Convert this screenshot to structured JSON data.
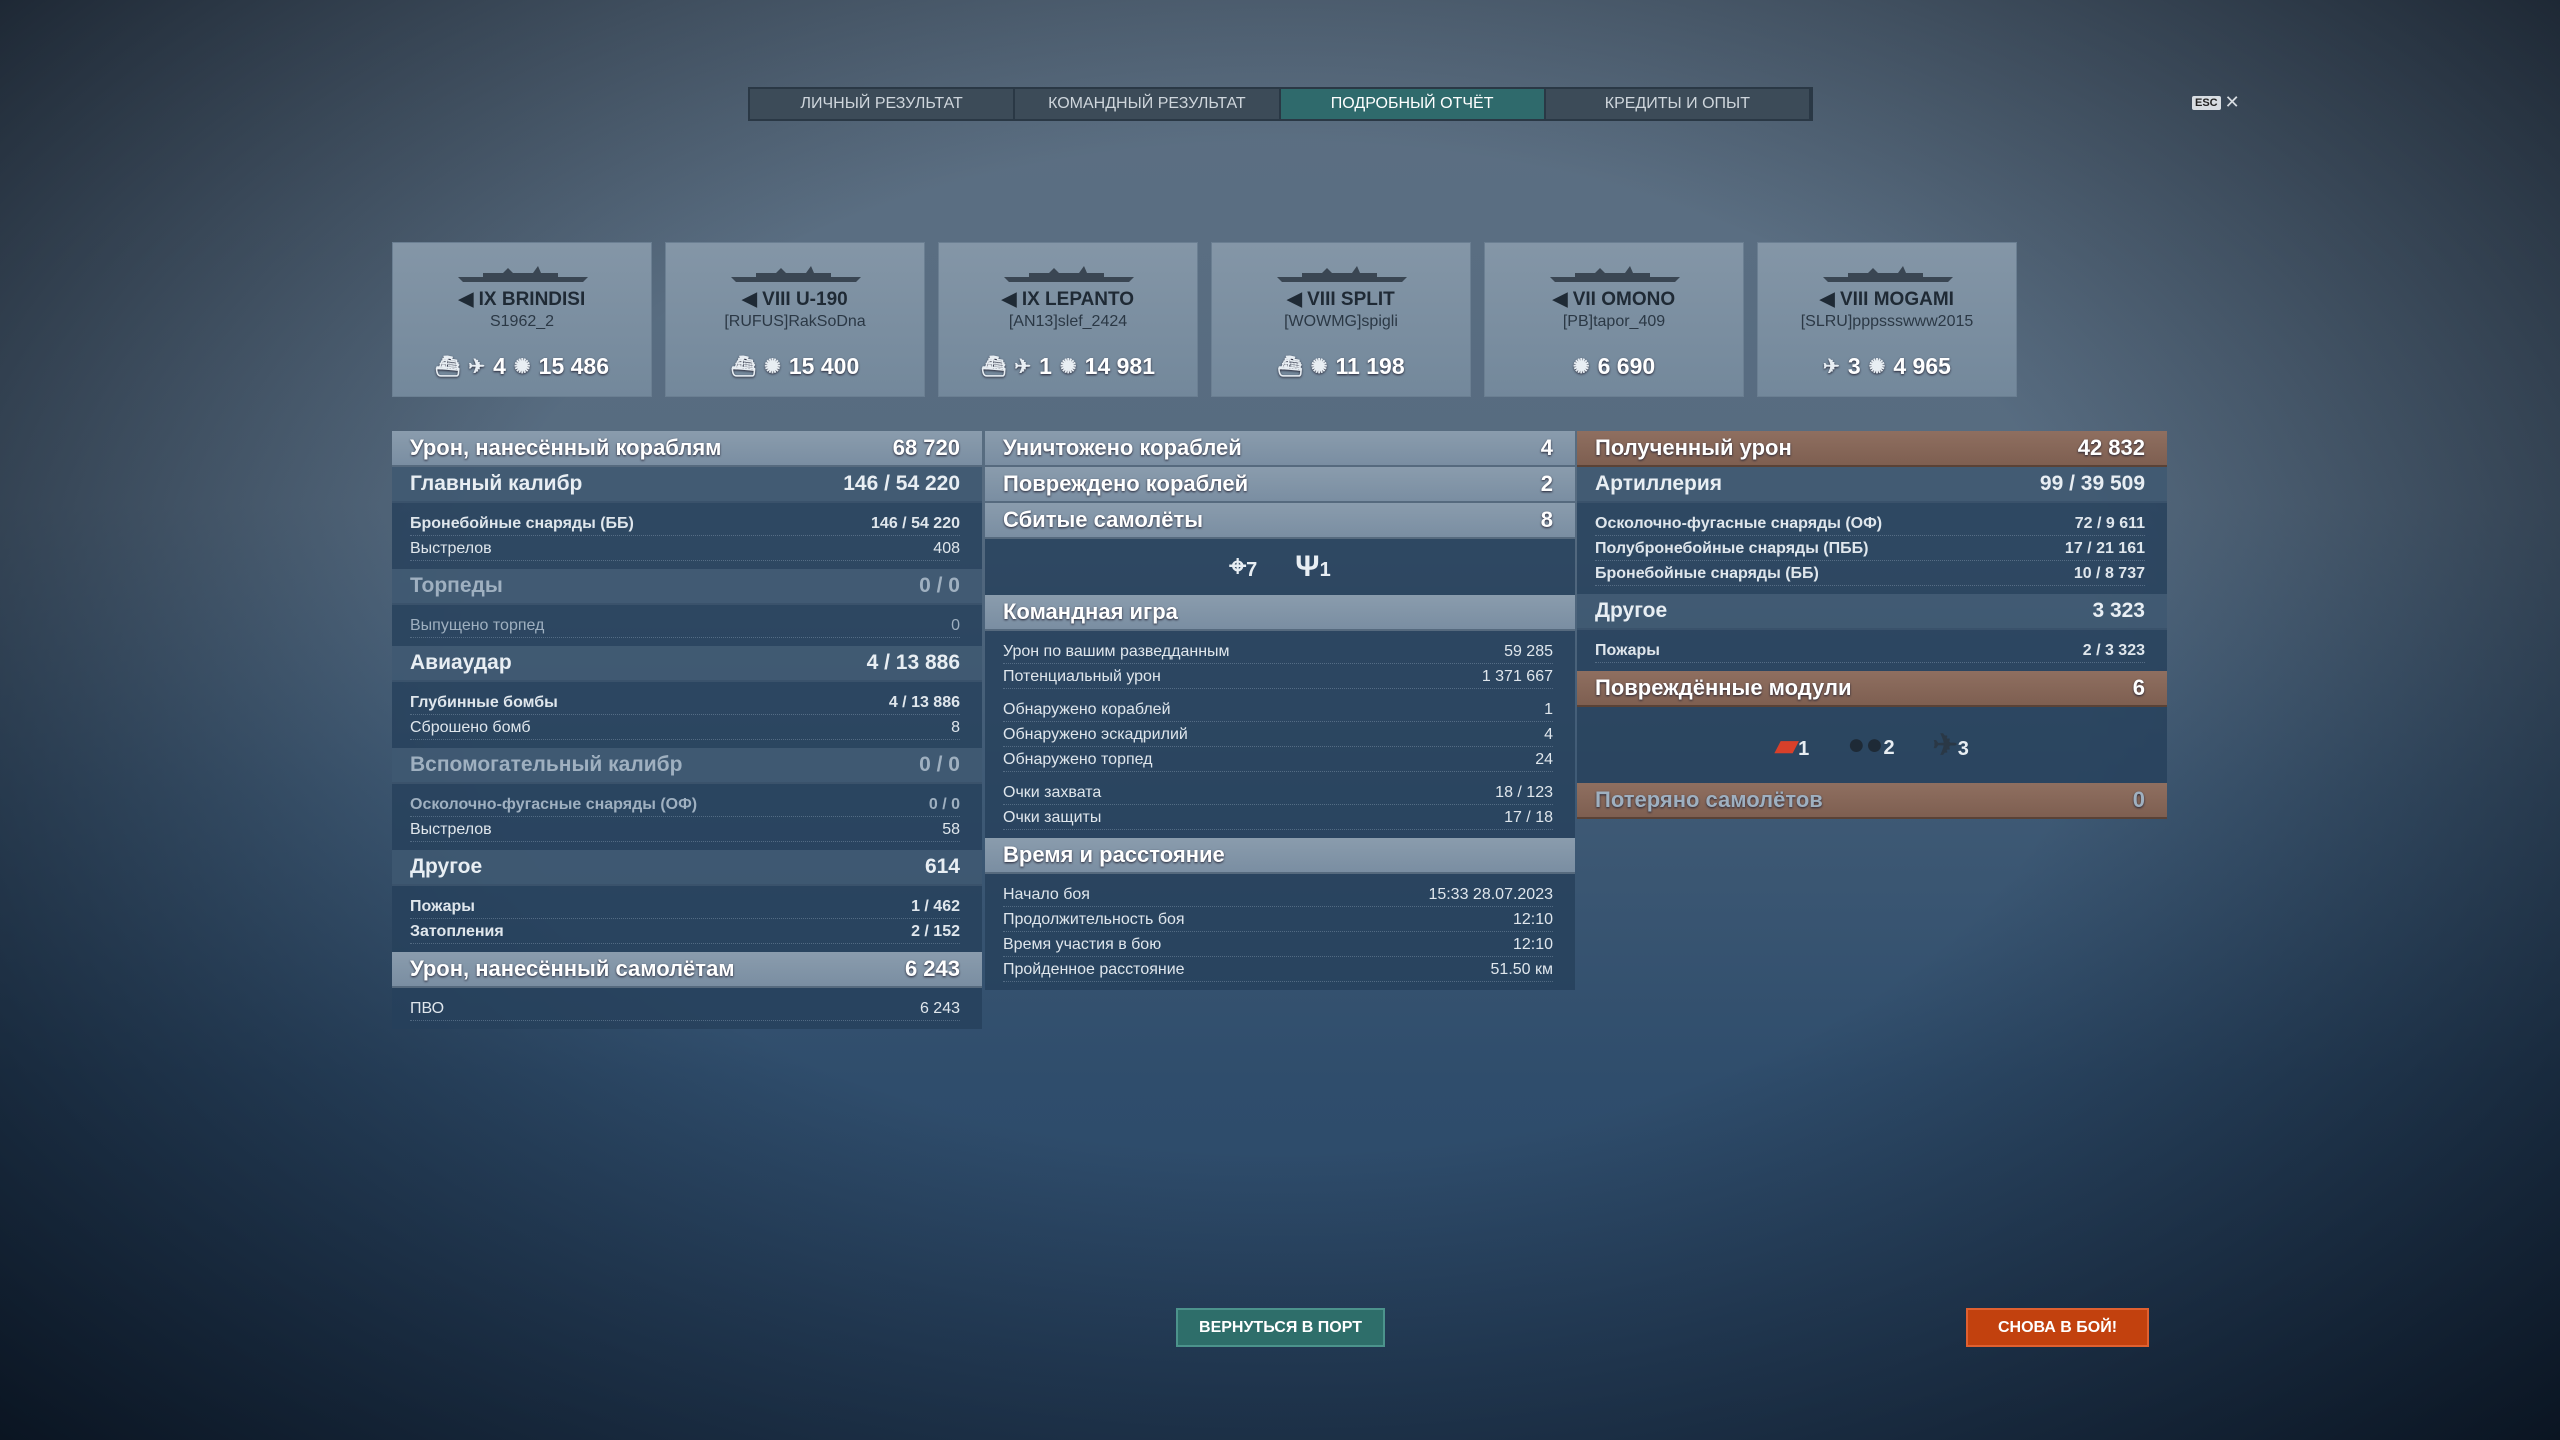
{
  "tabs": [
    {
      "label": "ЛИЧНЫЙ РЕЗУЛЬТАТ",
      "active": false
    },
    {
      "label": "КОМАНДНЫЙ РЕЗУЛЬТАТ",
      "active": false
    },
    {
      "label": "ПОДРОБНЫЙ ОТЧЁТ",
      "active": true
    },
    {
      "label": "КРЕДИТЫ И ОПЫТ",
      "active": false
    }
  ],
  "esc": {
    "key": "ESC",
    "close": "✕"
  },
  "ships": [
    {
      "name": "IX BRINDISI",
      "player": "S1962_2",
      "class_icon": "destroyer-icon",
      "stats": [
        {
          "icon": "ship-sunk-icon",
          "value": ""
        },
        {
          "icon": "plane-shot-icon",
          "value": "4"
        },
        {
          "icon": "damage-icon",
          "value": "15 486"
        }
      ]
    },
    {
      "name": "VIII U-190",
      "player": "[RUFUS]RakSoDna",
      "class_icon": "submarine-icon",
      "stats": [
        {
          "icon": "ship-sunk-icon",
          "value": ""
        },
        {
          "icon": "damage-icon",
          "value": "15 400"
        }
      ]
    },
    {
      "name": "IX LEPANTO",
      "player": "[AN13]slef_2424",
      "class_icon": "destroyer-icon",
      "stats": [
        {
          "icon": "ship-sunk-icon",
          "value": ""
        },
        {
          "icon": "plane-shot-icon",
          "value": "1"
        },
        {
          "icon": "damage-icon",
          "value": "14 981"
        }
      ]
    },
    {
      "name": "VIII SPLIT",
      "player": "[WOWMG]spigli",
      "class_icon": "submarine-icon",
      "stats": [
        {
          "icon": "ship-sunk-icon",
          "value": ""
        },
        {
          "icon": "damage-icon",
          "value": "11 198"
        }
      ]
    },
    {
      "name": "VII OMONO",
      "player": "[PB]tapor_409",
      "class_icon": "destroyer-icon",
      "stats": [
        {
          "icon": "damage-icon",
          "value": "6 690"
        }
      ]
    },
    {
      "name": "VIII MOGAMI",
      "player": "[SLRU]pppssswww2015",
      "class_icon": "cruiser-icon",
      "stats": [
        {
          "icon": "plane-shot-icon",
          "value": "3"
        },
        {
          "icon": "damage-icon",
          "value": "4 965"
        }
      ]
    }
  ],
  "columns": [
    [
      {
        "t": "major",
        "label": "Урон, нанесённый кораблям",
        "b": "68 720"
      },
      {
        "t": "minor",
        "label": "Главный калибр",
        "a": "146 / ",
        "b": "54 220"
      },
      {
        "t": "rows",
        "rows": [
          {
            "label": "Бронебойные снаряды (ББ)",
            "a": "146 / ",
            "b": "54 220",
            "bold": true
          },
          {
            "label": "Выстрелов",
            "a": "408"
          }
        ]
      },
      {
        "t": "minor",
        "label": "Торпеды",
        "a": "0 / 0",
        "dim": true
      },
      {
        "t": "rows",
        "rows": [
          {
            "label": "Выпущено торпед",
            "a": "0",
            "dim": true
          }
        ]
      },
      {
        "t": "minor",
        "label": "Авиаудар",
        "a": "4 / ",
        "b": "13 886"
      },
      {
        "t": "rows",
        "rows": [
          {
            "label": "Глубинные бомбы",
            "a": "4 / ",
            "b": "13 886",
            "bold": true
          },
          {
            "label": "Сброшено бомб",
            "a": "8"
          }
        ]
      },
      {
        "t": "minor",
        "label": "Вспомогательный калибр",
        "a": "0 / 0",
        "dim": true
      },
      {
        "t": "rows",
        "rows": [
          {
            "label": "Осколочно-фугасные снаряды (ОФ)",
            "a": "0 / 0",
            "dim": true,
            "bold": true
          },
          {
            "label": "Выстрелов",
            "a": "58"
          }
        ]
      },
      {
        "t": "minor",
        "label": "Другое",
        "b": "614"
      },
      {
        "t": "rows",
        "rows": [
          {
            "label": "Пожары",
            "a": "1 / ",
            "b": "462",
            "bold": true
          },
          {
            "label": "Затопления",
            "a": "2 / ",
            "b": "152",
            "bold": true
          }
        ]
      },
      {
        "t": "major",
        "label": "Урон, нанесённый самолётам",
        "b": "6 243"
      },
      {
        "t": "rows",
        "rows": [
          {
            "label": "ПВО",
            "a": "6 243"
          }
        ]
      }
    ],
    [
      {
        "t": "major",
        "label": "Уничтожено кораблей",
        "b": "4"
      },
      {
        "t": "major",
        "label": "Повреждено кораблей",
        "b": "2"
      },
      {
        "t": "major",
        "label": "Сбитые самолёты",
        "b": "8"
      },
      {
        "t": "icons",
        "items": [
          {
            "icon": "aa-crosshair-icon",
            "glyph": "⌖",
            "value": "7"
          },
          {
            "icon": "fighter-icon",
            "glyph": "Ψ",
            "value": "1"
          }
        ]
      },
      {
        "t": "major",
        "label": "Командная игра"
      },
      {
        "t": "rows",
        "rows": [
          {
            "label": "Урон по вашим разведданным",
            "a": "59 285"
          },
          {
            "label": "Потенциальный урон",
            "a": "1 371 667"
          },
          {
            "gap": true
          },
          {
            "label": "Обнаружено кораблей",
            "a": "1"
          },
          {
            "label": "Обнаружено эскадрилий",
            "a": "4"
          },
          {
            "label": "Обнаружено торпед",
            "a": "24"
          },
          {
            "gap": true
          },
          {
            "label": "Очки захвата",
            "a": "18 / 123"
          },
          {
            "label": "Очки защиты",
            "a": "17 / 18"
          }
        ]
      },
      {
        "t": "major",
        "label": "Время и расстояние"
      },
      {
        "t": "rows",
        "rows": [
          {
            "label": "Начало боя",
            "a": "15:33  28.07.2023"
          },
          {
            "label": "Продолжительность боя",
            "a": "12:10"
          },
          {
            "label": "Время участия в бою",
            "a": "12:10"
          },
          {
            "label": "Пройденное расстояние",
            "a": "51.50 км"
          }
        ]
      }
    ],
    [
      {
        "t": "major",
        "brown": true,
        "label": "Полученный урон",
        "b": "42 832"
      },
      {
        "t": "minor",
        "label": "Артиллерия",
        "a": "99 / ",
        "b": "39 509"
      },
      {
        "t": "rows",
        "rows": [
          {
            "label": "Осколочно-фугасные снаряды (ОФ)",
            "a": "72 / ",
            "b": "9 611",
            "bold": true
          },
          {
            "label": "Полубронебойные снаряды (ПББ)",
            "a": "17 / ",
            "b": "21 161",
            "bold": true
          },
          {
            "label": "Бронебойные снаряды (ББ)",
            "a": "10 / ",
            "b": "8 737",
            "bold": true
          }
        ]
      },
      {
        "t": "minor",
        "label": "Другое",
        "b": "3 323"
      },
      {
        "t": "rows",
        "rows": [
          {
            "label": "Пожары",
            "a": "2 / ",
            "b": "3 323",
            "bold": true
          }
        ]
      },
      {
        "t": "major",
        "brown": true,
        "label": "Повреждённые модули",
        "b": "6"
      },
      {
        "t": "icons",
        "mods": true,
        "items": [
          {
            "icon": "torpedo-tubes-icon",
            "glyph": "▰",
            "color": "#d8402a",
            "value": "1"
          },
          {
            "icon": "depth-charges-icon",
            "glyph": "●●",
            "color": "#1e2a36",
            "value": "2"
          },
          {
            "icon": "aa-mount-icon",
            "glyph": "✈",
            "color": "#2a3846",
            "value": "3"
          }
        ]
      },
      {
        "t": "major",
        "brown": true,
        "label": "Потеряно самолётов",
        "b": "0",
        "dim": true
      }
    ]
  ],
  "buttons": {
    "port": "ВЕРНУТЬСЯ В ПОРТ",
    "battle": "СНОВА В БОЙ!"
  }
}
